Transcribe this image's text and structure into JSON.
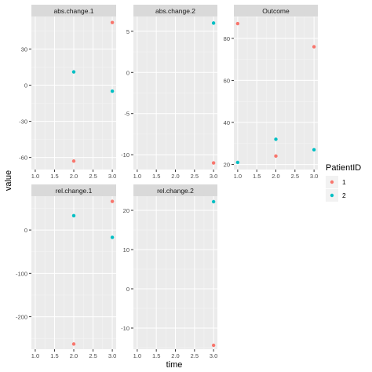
{
  "chart_data": {
    "type": "scatter",
    "facets": [
      {
        "strip": "abs.change.1",
        "xlim": [
          0.9,
          3.1
        ],
        "ylim": [
          -70,
          57
        ],
        "xticks": [
          1.0,
          1.5,
          2.0,
          2.5,
          3.0
        ],
        "xtick_labels": [
          "1.0",
          "1.5",
          "2.0",
          "2.5",
          "3.0"
        ],
        "yticks": [
          -60,
          -30,
          0,
          30
        ],
        "ytick_labels": [
          "-60",
          "-30",
          "0",
          "30"
        ],
        "points": [
          {
            "series": "1",
            "x": 2,
            "y": -63
          },
          {
            "series": "1",
            "x": 3,
            "y": 52
          },
          {
            "series": "2",
            "x": 2,
            "y": 11
          },
          {
            "series": "2",
            "x": 3,
            "y": -5
          }
        ]
      },
      {
        "strip": "abs.change.2",
        "xlim": [
          0.9,
          3.1
        ],
        "ylim": [
          -11.8,
          6.8
        ],
        "xticks": [
          1.0,
          1.5,
          2.0,
          2.5,
          3.0
        ],
        "xtick_labels": [
          "1.0",
          "1.5",
          "2.0",
          "2.5",
          "3.0"
        ],
        "yticks": [
          -10,
          -5,
          0,
          5
        ],
        "ytick_labels": [
          "-10",
          "-5",
          "0",
          "5"
        ],
        "points": [
          {
            "series": "1",
            "x": 3,
            "y": -11
          },
          {
            "series": "2",
            "x": 3,
            "y": 6
          }
        ]
      },
      {
        "strip": "Outcome",
        "xlim": [
          0.9,
          3.1
        ],
        "ylim": [
          17.6,
          90.4
        ],
        "xticks": [
          1.0,
          1.5,
          2.0,
          2.5,
          3.0
        ],
        "xtick_labels": [
          "1.0",
          "1.5",
          "2.0",
          "2.5",
          "3.0"
        ],
        "yticks": [
          20,
          40,
          60,
          80
        ],
        "ytick_labels": [
          "20",
          "40",
          "60",
          "80"
        ],
        "points": [
          {
            "series": "1",
            "x": 1,
            "y": 87
          },
          {
            "series": "1",
            "x": 2,
            "y": 24
          },
          {
            "series": "1",
            "x": 3,
            "y": 76
          },
          {
            "series": "2",
            "x": 1,
            "y": 21
          },
          {
            "series": "2",
            "x": 2,
            "y": 32
          },
          {
            "series": "2",
            "x": 3,
            "y": 27
          }
        ]
      },
      {
        "strip": "rel.change.1",
        "xlim": [
          0.9,
          3.1
        ],
        "ylim": [
          -275,
          78
        ],
        "xticks": [
          1.0,
          1.5,
          2.0,
          2.5,
          3.0
        ],
        "xtick_labels": [
          "1.0",
          "1.5",
          "2.0",
          "2.5",
          "3.0"
        ],
        "yticks": [
          -200,
          -100,
          0
        ],
        "ytick_labels": [
          "-200",
          "-100",
          "0"
        ],
        "points": [
          {
            "series": "1",
            "x": 2,
            "y": -263
          },
          {
            "series": "1",
            "x": 3,
            "y": 66
          },
          {
            "series": "2",
            "x": 2,
            "y": 33
          },
          {
            "series": "2",
            "x": 3,
            "y": -17
          }
        ]
      },
      {
        "strip": "rel.change.2",
        "xlim": [
          0.9,
          3.1
        ],
        "ylim": [
          -15.4,
          23.6
        ],
        "xticks": [
          1.0,
          1.5,
          2.0,
          2.5,
          3.0
        ],
        "xtick_labels": [
          "1.0",
          "1.5",
          "2.0",
          "2.5",
          "3.0"
        ],
        "yticks": [
          -10,
          0,
          10,
          20
        ],
        "ytick_labels": [
          "-10",
          "0",
          "10",
          "20"
        ],
        "points": [
          {
            "series": "1",
            "x": 3,
            "y": -14.4
          },
          {
            "series": "2",
            "x": 3,
            "y": 22.2
          }
        ]
      }
    ],
    "xlabel": "time",
    "ylabel": "value",
    "legend": {
      "title": "PatientID",
      "placement": "right",
      "entries": [
        {
          "label": "1",
          "color": "#F8766D"
        },
        {
          "label": "2",
          "color": "#00BFC4"
        }
      ]
    },
    "panel_background": "#EBEBEB",
    "strip_background": "#D9D9D9",
    "grid": true
  }
}
